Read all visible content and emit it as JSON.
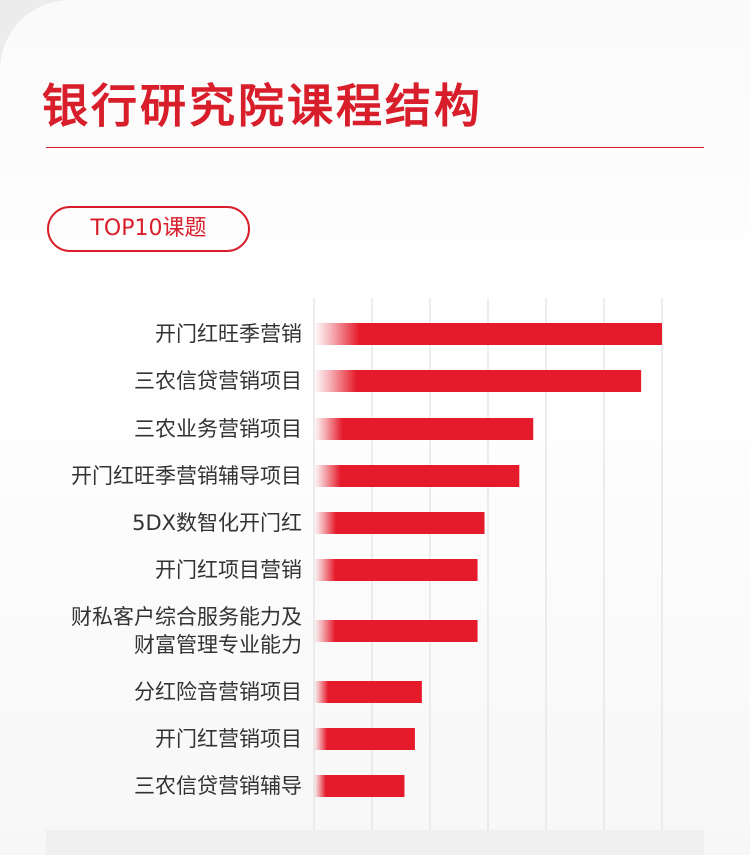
{
  "title": "银行研究院课程结构",
  "badge": "TOP10课题",
  "colors": {
    "accent": "#d81e2a",
    "bar": "#e51b2b",
    "grid": "#dcdcdc"
  },
  "chart_data": {
    "type": "bar",
    "orientation": "horizontal",
    "xlim": [
      0,
      100
    ],
    "grid": true,
    "categories": [
      [
        "开门红旺季营销"
      ],
      [
        "三农信贷营销项目"
      ],
      [
        "三农业务营销项目"
      ],
      [
        "开门红旺季营销辅导项目"
      ],
      [
        "5DX数智化开门红"
      ],
      [
        "开门红项目营销"
      ],
      [
        "财私客户综合服务能力及",
        "财富管理专业能力"
      ],
      [
        "分红险音营销项目"
      ],
      [
        "开门红营销项目"
      ],
      [
        "三农信贷营销辅导"
      ]
    ],
    "values": [
      100,
      94,
      63,
      59,
      49,
      47,
      47,
      31,
      29,
      26
    ]
  }
}
